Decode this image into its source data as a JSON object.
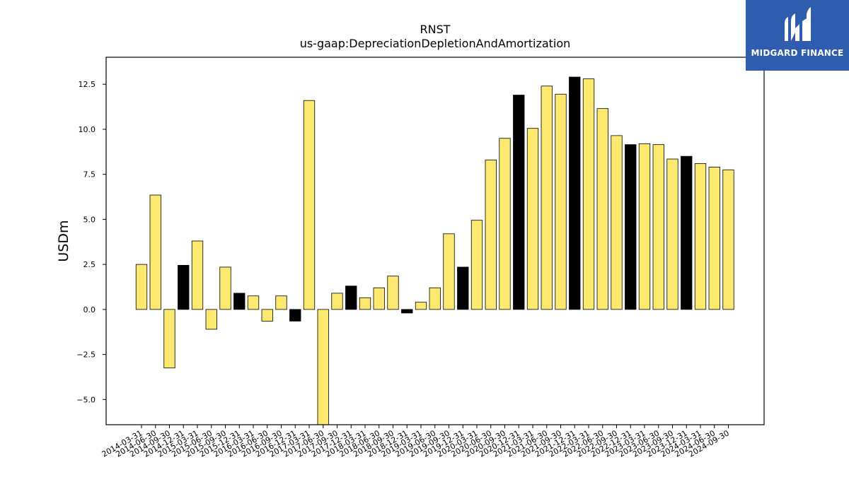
{
  "brand": {
    "name": "MIDGARD FINANCE",
    "bg_color": "#2e5cae",
    "icon": "midgard-logo-icon"
  },
  "colors": {
    "bar_default": "#fde96f",
    "bar_highlight": "#000000",
    "bar_edge": "#000000"
  },
  "chart_data": {
    "type": "bar",
    "title": "RNST",
    "subtitle": "us-gaap:DepreciationDepletionAndAmortization",
    "xlabel": "",
    "ylabel": "USDm",
    "ylim": [
      -6.4,
      14.0
    ],
    "yticks": [
      -5.0,
      -2.5,
      0.0,
      2.5,
      5.0,
      7.5,
      10.0,
      12.5
    ],
    "ytick_labels": [
      "−5.0",
      "−2.5",
      "0.0",
      "2.5",
      "5.0",
      "7.5",
      "10.0",
      "12.5"
    ],
    "grid": false,
    "legend": "none",
    "categories": [
      "2014-03-31",
      "2014-06-30",
      "2014-09-30",
      "2014-12-31",
      "2015-03-31",
      "2015-06-30",
      "2015-09-30",
      "2015-12-31",
      "2016-03-31",
      "2016-06-30",
      "2016-09-30",
      "2016-12-31",
      "2017-03-31",
      "2017-06-30",
      "2017-09-30",
      "2017-12-31",
      "2018-03-31",
      "2018-06-30",
      "2018-09-30",
      "2018-12-31",
      "2019-03-31",
      "2019-06-30",
      "2019-09-30",
      "2019-12-31",
      "2020-03-31",
      "2020-06-30",
      "2020-09-30",
      "2020-12-31",
      "2021-03-31",
      "2021-06-30",
      "2021-09-30",
      "2021-12-31",
      "2022-03-31",
      "2022-06-30",
      "2022-09-30",
      "2022-12-31",
      "2023-03-31",
      "2023-06-30",
      "2023-09-30",
      "2023-12-31",
      "2024-03-31",
      "2024-06-30",
      "2024-09-30"
    ],
    "values": [
      2.5,
      6.35,
      -3.25,
      2.45,
      3.8,
      -1.1,
      2.35,
      0.9,
      0.75,
      -0.65,
      0.75,
      -0.65,
      11.6,
      -7.0,
      0.9,
      1.3,
      0.65,
      1.2,
      1.85,
      -0.2,
      0.4,
      1.2,
      4.2,
      2.35,
      4.95,
      8.3,
      9.5,
      11.9,
      10.05,
      12.4,
      11.95,
      12.9,
      12.8,
      11.15,
      9.65,
      9.15,
      9.2,
      9.15,
      8.35,
      8.5,
      8.1,
      7.9,
      7.75
    ],
    "highlight": [
      false,
      false,
      false,
      true,
      false,
      false,
      false,
      true,
      false,
      false,
      false,
      true,
      false,
      false,
      false,
      true,
      false,
      false,
      false,
      true,
      false,
      false,
      false,
      true,
      false,
      false,
      false,
      true,
      false,
      false,
      false,
      true,
      false,
      false,
      false,
      true,
      false,
      false,
      false,
      true,
      false,
      false,
      false
    ]
  }
}
